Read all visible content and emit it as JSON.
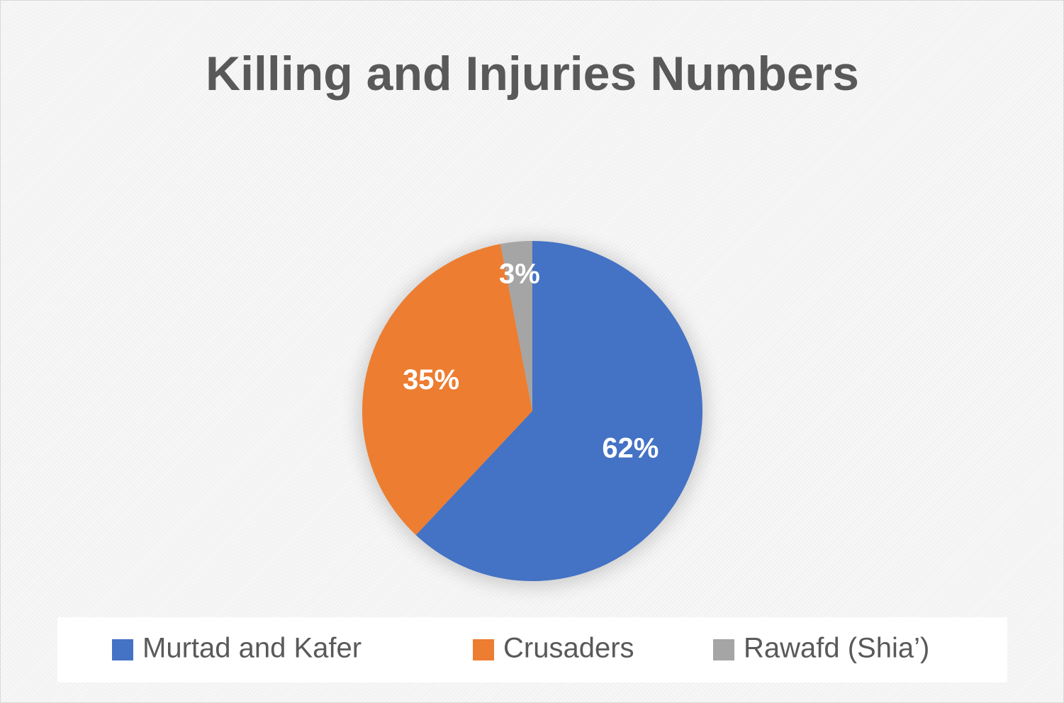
{
  "chart_data": {
    "type": "pie",
    "title": "Killing and Injuries Numbers",
    "categories": [
      "Murtad and Kafer",
      "Crusaders",
      "Rawafd (Shia’)"
    ],
    "values": [
      62,
      35,
      3
    ],
    "value_labels": [
      "62%",
      "35%",
      "3%"
    ],
    "colors": [
      "#4472c4",
      "#ed7d31",
      "#a5a5a5"
    ]
  }
}
